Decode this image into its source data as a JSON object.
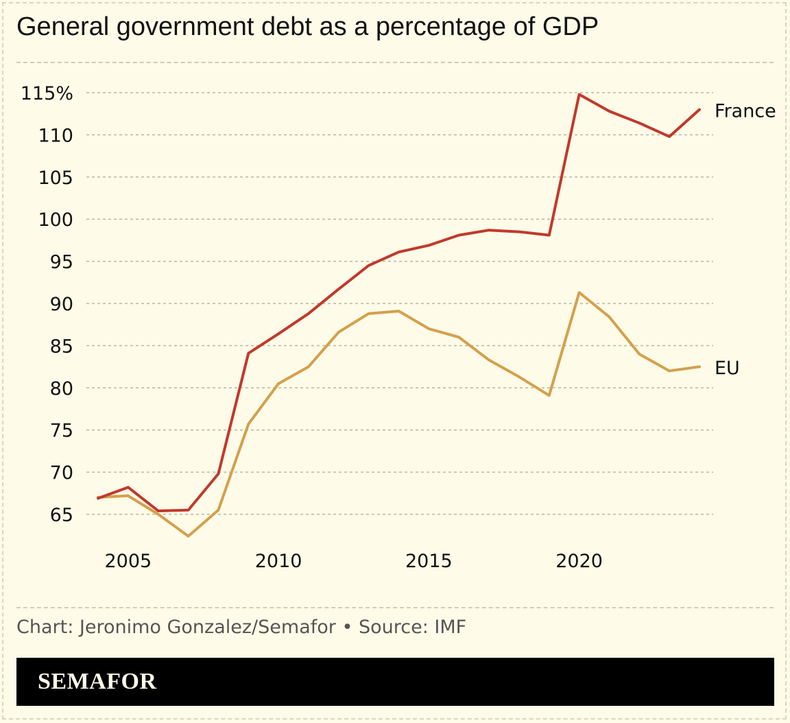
{
  "title": "General government debt as a percentage of GDP",
  "credit": "Chart: Jeronimo Gonzalez/Semafor • Source: IMF",
  "brand": "SEMAFOR",
  "colors": {
    "background": "#fefbe8",
    "france": "#c0392b",
    "eu": "#d4a04c",
    "grid": "#b9b6a8",
    "brand_bar": "#000000"
  },
  "chart_data": {
    "type": "line",
    "title": "General government debt as a percentage of GDP",
    "xlabel": "",
    "ylabel": "",
    "xlim": [
      2004,
      2024
    ],
    "ylim": [
      65,
      115
    ],
    "grid": true,
    "legend": "direct labels at line ends",
    "x_ticks": [
      {
        "value": 2005,
        "label": "2005"
      },
      {
        "value": 2010,
        "label": "2010"
      },
      {
        "value": 2015,
        "label": "2015"
      },
      {
        "value": 2020,
        "label": "2020"
      }
    ],
    "y_ticks": [
      {
        "value": 115,
        "label": "115%"
      },
      {
        "value": 110,
        "label": "110"
      },
      {
        "value": 105,
        "label": "105"
      },
      {
        "value": 100,
        "label": "100"
      },
      {
        "value": 95,
        "label": "95"
      },
      {
        "value": 90,
        "label": "90"
      },
      {
        "value": 85,
        "label": "85"
      },
      {
        "value": 80,
        "label": "80"
      },
      {
        "value": 75,
        "label": "75"
      },
      {
        "value": 70,
        "label": "70"
      },
      {
        "value": 65,
        "label": "65"
      }
    ],
    "x": [
      2004,
      2005,
      2006,
      2007,
      2008,
      2009,
      2010,
      2011,
      2012,
      2013,
      2014,
      2015,
      2016,
      2017,
      2018,
      2019,
      2020,
      2021,
      2022,
      2023,
      2024
    ],
    "series": [
      {
        "name": "France",
        "color": "#c0392b",
        "values": [
          66.9,
          68.2,
          65.4,
          65.5,
          69.8,
          84.1,
          86.4,
          88.8,
          91.7,
          94.5,
          96.1,
          96.9,
          98.1,
          98.7,
          98.5,
          98.1,
          114.8,
          112.8,
          111.4,
          109.8,
          113.0
        ]
      },
      {
        "name": "EU",
        "color": "#d4a04c",
        "values": [
          67.0,
          67.2,
          65.0,
          62.4,
          65.5,
          75.7,
          80.5,
          82.5,
          86.6,
          88.8,
          89.1,
          87.0,
          86.0,
          83.3,
          81.3,
          79.1,
          91.3,
          88.4,
          84.0,
          82.0,
          82.5
        ]
      }
    ]
  }
}
